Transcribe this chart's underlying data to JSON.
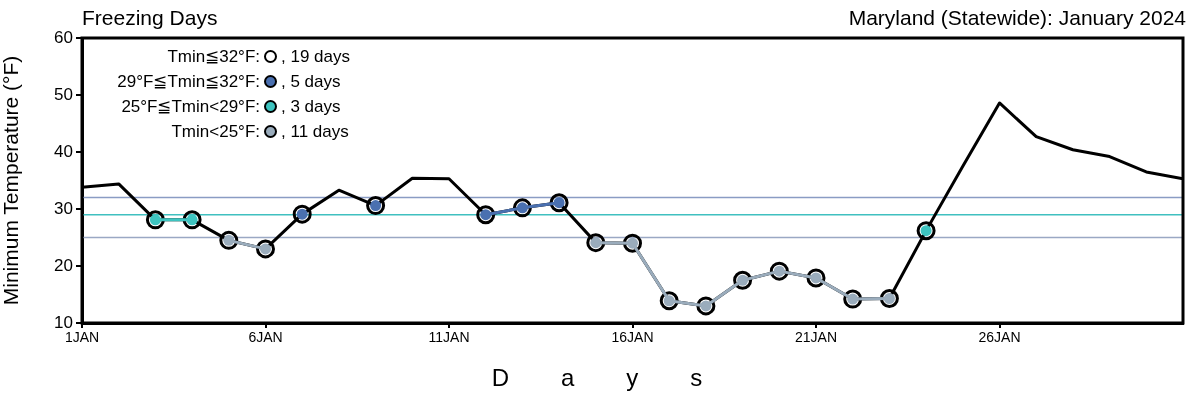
{
  "chart_data": {
    "type": "line",
    "title": "Freezing Days",
    "subtitle": "Maryland (Statewide): January 2024",
    "xlabel": "Days",
    "ylabel": "Minimum Temperature (°F)",
    "x": [
      "2024-01-01",
      "2024-01-02",
      "2024-01-03",
      "2024-01-04",
      "2024-01-05",
      "2024-01-06",
      "2024-01-07",
      "2024-01-08",
      "2024-01-09",
      "2024-01-10",
      "2024-01-11",
      "2024-01-12",
      "2024-01-13",
      "2024-01-14",
      "2024-01-15",
      "2024-01-16",
      "2024-01-17",
      "2024-01-18",
      "2024-01-19",
      "2024-01-20",
      "2024-01-21",
      "2024-01-22",
      "2024-01-23",
      "2024-01-24",
      "2024-01-25",
      "2024-01-26",
      "2024-01-27",
      "2024-01-28",
      "2024-01-29",
      "2024-01-30",
      "2024-01-31"
    ],
    "xlim": [
      "2024-01-01",
      "2024-01-31"
    ],
    "xticks": [
      {
        "value": "2024-01-01",
        "label": "1JAN"
      },
      {
        "value": "2024-01-06",
        "label": "6JAN"
      },
      {
        "value": "2024-01-11",
        "label": "11JAN"
      },
      {
        "value": "2024-01-16",
        "label": "16JAN"
      },
      {
        "value": "2024-01-21",
        "label": "21JAN"
      },
      {
        "value": "2024-01-26",
        "label": "26JAN"
      }
    ],
    "ylim": [
      10,
      60
    ],
    "yticks": [
      10,
      20,
      30,
      40,
      50,
      60
    ],
    "grid": false,
    "legend": "top left",
    "marker": "circle",
    "line_style": "solid",
    "series": [
      {
        "marker": "none",
        "color": "#000000",
        "values": [
          33.8,
          34.4,
          28.1,
          28.1,
          24.5,
          23.0,
          29.1,
          33.3,
          30.6,
          35.4,
          35.3,
          29.0,
          30.2,
          31.1,
          24.1,
          24.0,
          13.9,
          13.0,
          17.5,
          19.1,
          17.9,
          14.2,
          14.3,
          26.2,
          37.5,
          48.6,
          42.7,
          40.4,
          39.2,
          36.5,
          35.3
        ]
      },
      {
        "type": "scatter",
        "name": "Tmin≦32°F:",
        "color": "#000000",
        "values": [
          null,
          null,
          28.1,
          28.1,
          24.5,
          23.0,
          29.1,
          null,
          30.6,
          null,
          null,
          29.0,
          30.2,
          31.1,
          24.1,
          24.0,
          13.9,
          13.0,
          17.5,
          19.1,
          17.9,
          14.2,
          14.3,
          26.2,
          null,
          null,
          null,
          null,
          null,
          null,
          null
        ]
      },
      {
        "name": "29°F≦Tmin≦32°F:",
        "color": "#4a70b0",
        "values": [
          null,
          null,
          null,
          null,
          null,
          null,
          29.1,
          null,
          30.6,
          null,
          null,
          29.0,
          30.2,
          31.1,
          null,
          null,
          null,
          null,
          null,
          null,
          null,
          null,
          null,
          null,
          null,
          null,
          null,
          null,
          null,
          null,
          null
        ]
      },
      {
        "name": "25°F≦Tmin<29°F:",
        "color": "#3ec4c0",
        "values": [
          null,
          null,
          28.1,
          28.1,
          null,
          null,
          null,
          null,
          null,
          null,
          null,
          null,
          null,
          null,
          null,
          null,
          null,
          null,
          null,
          null,
          null,
          null,
          null,
          26.2,
          null,
          null,
          null,
          null,
          null,
          null,
          null
        ]
      },
      {
        "name": "Tmin<25°F:",
        "color": "#9aacbc",
        "values": [
          null,
          null,
          null,
          null,
          24.5,
          23.0,
          null,
          null,
          null,
          null,
          null,
          null,
          null,
          null,
          24.1,
          24.0,
          13.9,
          13.0,
          17.5,
          19.1,
          17.9,
          14.2,
          14.3,
          null,
          null,
          null,
          null,
          null,
          null,
          null,
          null
        ]
      }
    ],
    "annotations": [
      ", 19 days",
      ", 5 days",
      ", 3 days",
      ", 11 days"
    ],
    "ref_lines": [
      {
        "axis": "y",
        "value": 32,
        "color": "#8a9cc4"
      },
      {
        "axis": "y",
        "value": 29,
        "color": "#40c0c0"
      },
      {
        "axis": "y",
        "value": 25,
        "color": "#9aa8c4"
      }
    ]
  }
}
